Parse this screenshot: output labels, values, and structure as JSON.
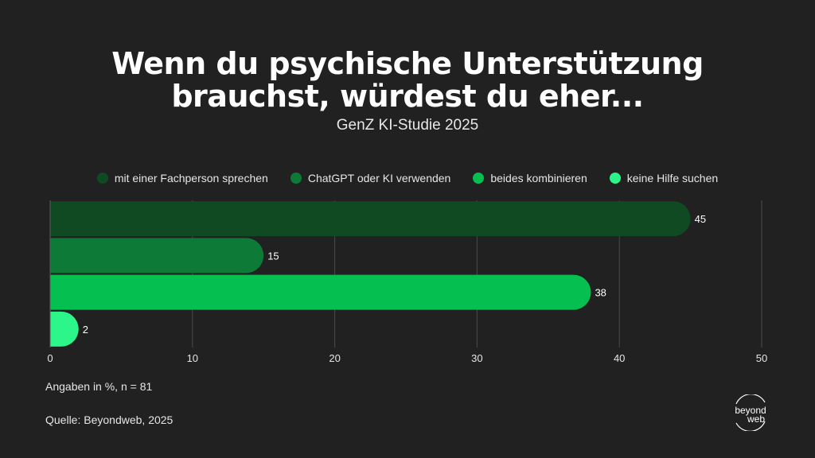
{
  "title_line1": "Wenn du psychische Unterstützung",
  "title_line2": "brauchst, würdest du eher...",
  "subtitle": "GenZ KI-Studie 2025",
  "note": "Angaben in %, n = 81",
  "source": "Quelle: Beyondweb, 2025",
  "logo": {
    "line1": "beyond",
    "line2": "web"
  },
  "chart_data": {
    "type": "bar",
    "orientation": "horizontal",
    "categories": [
      "mit einer Fachperson sprechen",
      "ChatGPT oder KI verwenden",
      "beides kombinieren",
      "keine Hilfe suchen"
    ],
    "values": [
      45,
      15,
      38,
      2
    ],
    "colors": [
      "#0f4a23",
      "#0e7a37",
      "#05bf50",
      "#2cf58a"
    ],
    "xlim": [
      0,
      50
    ],
    "xticks": [
      0,
      10,
      20,
      30,
      40,
      50
    ],
    "grid": true,
    "legend_position": "top-center",
    "title": "Wenn du psychische Unterstützung brauchst, würdest du eher...",
    "subtitle": "GenZ KI-Studie 2025",
    "xlabel": "",
    "ylabel": ""
  }
}
